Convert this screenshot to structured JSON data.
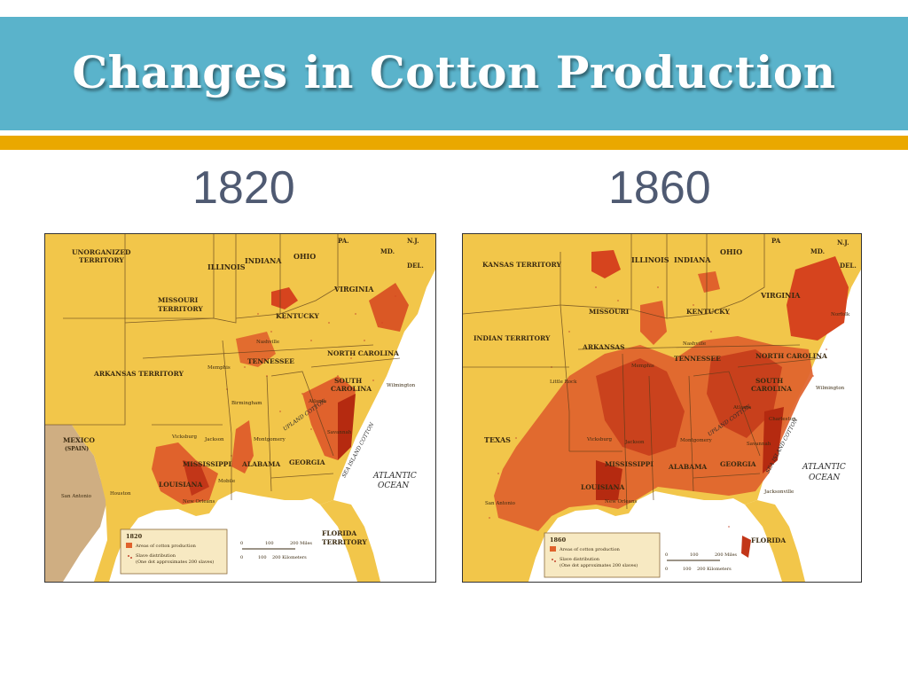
{
  "slide": {
    "title": "Changes in Cotton Production",
    "colors": {
      "title_bar": "#5ab3cb",
      "accent_bar": "#eaa800",
      "year_text": "#4f5a72"
    }
  },
  "maps": [
    {
      "year": "1820",
      "labels": {
        "territory_nw": "UNORGANIZED",
        "territory_nw2": "TERRITORY",
        "illinois": "ILLINOIS",
        "indiana": "INDIANA",
        "ohio": "OHIO",
        "pa": "PA.",
        "nj": "N.J.",
        "md": "MD.",
        "del": "DEL.",
        "missouri": "MISSOURI",
        "missouri2": "TERRITORY",
        "virginia": "VIRGINIA",
        "kentucky": "KENTUCKY",
        "arkansas": "ARKANSAS TERRITORY",
        "tennessee": "TENNESSEE",
        "north_carolina": "NORTH CAROLINA",
        "south_carolina": "SOUTH",
        "south_carolina2": "CAROLINA",
        "mexico": "MEXICO",
        "mexico2": "(SPAIN)",
        "mississippi": "MISSISSIPPI",
        "alabama": "ALABAMA",
        "georgia": "GEORGIA",
        "louisiana": "LOUISIANA",
        "florida": "FLORIDA",
        "florida2": "TERRITORY",
        "ocean": "ATLANTIC",
        "ocean2": "OCEAN",
        "upland": "UPLAND COTTON",
        "sea_island": "SEA ISLAND COTTON",
        "memphis": "Memphis",
        "nashville": "Nashville",
        "vicksburg": "Vicksburg",
        "jackson": "Jackson",
        "montgomery": "Montgomery",
        "mobile": "Mobile",
        "new_orleans": "New Orleans",
        "san_antonio": "San Antonio",
        "houston": "Houston",
        "atlanta": "Atlanta",
        "savannah": "Savannah",
        "wilmington": "Wilmington",
        "birmingham": "Birmingham"
      },
      "legend": {
        "year": "1820",
        "cotton": "Areas of cotton production",
        "slave": "Slave distribution",
        "slave2": "(One dot approximates 200 slaves)",
        "scale_top": [
          "0",
          "100",
          "200 Miles"
        ],
        "scale_bottom": [
          "0",
          "100",
          "200 Kilometers"
        ]
      }
    },
    {
      "year": "1860",
      "labels": {
        "territory_nw": "KANSAS TERRITORY",
        "illinois": "ILLINOIS",
        "indiana": "INDIANA",
        "ohio": "OHIO",
        "pa": "PA",
        "nj": "N.J.",
        "md": "MD.",
        "del": "DEL.",
        "missouri": "MISSOURI",
        "virginia": "VIRGINIA",
        "kentucky": "KENTUCKY",
        "indian": "INDIAN TERRITORY",
        "arkansas": "ARKANSAS",
        "tennessee": "TENNESSEE",
        "north_carolina": "NORTH CAROLINA",
        "south_carolina": "SOUTH",
        "south_carolina2": "CAROLINA",
        "texas": "TEXAS",
        "mississippi": "MISSISSIPPI",
        "alabama": "ALABAMA",
        "georgia": "GEORGIA",
        "louisiana": "LOUISIANA",
        "florida": "FLORIDA",
        "ocean": "ATLANTIC",
        "ocean2": "OCEAN",
        "upland": "UPLAND COTTON",
        "sea_island": "SEA ISLAND COTTON",
        "little_rock": "Little Rock",
        "memphis": "Memphis",
        "nashville": "Nashville",
        "vicksburg": "Vicksburg",
        "jackson": "Jackson",
        "montgomery": "Montgomery",
        "new_orleans": "New Orleans",
        "san_antonio": "San Antonio",
        "atlanta": "Atlanta",
        "charleston": "Charleston",
        "savannah": "Savannah",
        "wilmington": "Wilmington",
        "norfolk": "Norfolk",
        "jacksonville": "Jacksonville"
      },
      "legend": {
        "year": "1860",
        "cotton": "Areas of cotton production",
        "slave": "Slave distribution",
        "slave2": "(One dot approximates 200 slaves)",
        "scale_top": [
          "0",
          "100",
          "200 Miles"
        ],
        "scale_bottom": [
          "0",
          "100",
          "200 Kilometers"
        ]
      }
    }
  ]
}
